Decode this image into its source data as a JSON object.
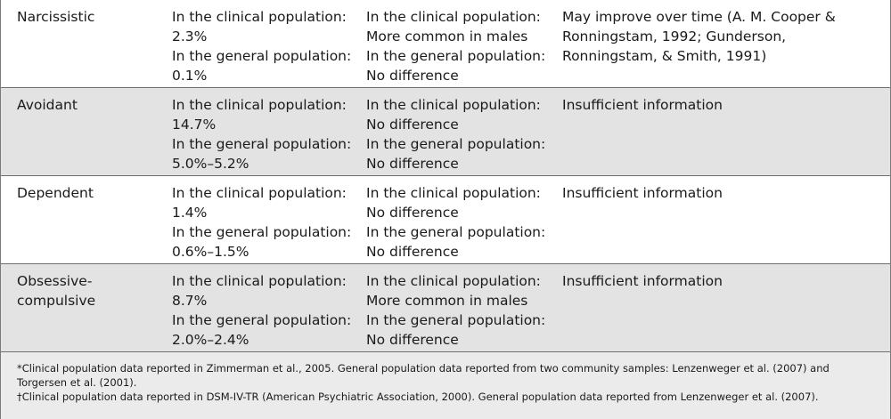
{
  "rows": [
    {
      "disorder": [
        "Narcissistic"
      ],
      "prevalence": [
        "In the clinical population:",
        "2.3%",
        "In the general population:",
        "0.1%"
      ],
      "gender": [
        "In the clinical population:",
        "More common in males",
        "In the general population:",
        "No difference"
      ],
      "course": [
        "May improve over time (A. M. Cooper &",
        "Ronningstam, 1992; Gunderson,",
        "Ronningstam, & Smith, 1991)"
      ]
    },
    {
      "disorder": [
        "Avoidant"
      ],
      "prevalence": [
        "In the clinical population:",
        "14.7%",
        "In the general population:",
        "5.0%–5.2%"
      ],
      "gender": [
        "In the clinical population:",
        "No difference",
        "In the general population:",
        "No difference"
      ],
      "course": [
        "Insufficient information"
      ]
    },
    {
      "disorder": [
        "Dependent"
      ],
      "prevalence": [
        "In the clinical population:",
        "1.4%",
        "In the general population:",
        "0.6%–1.5%"
      ],
      "gender": [
        "In the clinical population:",
        "No difference",
        "In the general population:",
        "No difference"
      ],
      "course": [
        "Insufficient information"
      ]
    },
    {
      "disorder": [
        "Obsessive-",
        "compulsive"
      ],
      "prevalence": [
        "In the clinical population:",
        "8.7%",
        "In the general population:",
        "2.0%–2.4%"
      ],
      "gender": [
        "In the clinical population:",
        "More common in males",
        "In the general population:",
        "No difference"
      ],
      "course": [
        "Insufficient information"
      ]
    }
  ],
  "footnotes": [
    "*Clinical population data reported in Zimmerman et al., 2005. General population data reported from two community samples: Lenzenweger et al. (2007) and",
    "Torgersen et al. (2001).",
    "†Clinical population data reported in DSM-IV-TR (American Psychiatric Association, 2000). General population data reported from Lenzenweger et al. (2007)."
  ]
}
